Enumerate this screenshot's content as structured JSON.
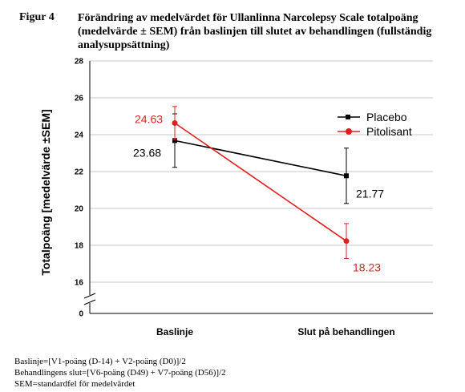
{
  "figure": {
    "label": "Figur 4",
    "title_lines": [
      "Förändring av medelvärdet för Ullanlinna Narcolepsy Scale totalpoäng",
      "(medelvärde ± SEM) från baslinjen till slutet av behandlingen (fullständig",
      "analysuppsättning)"
    ]
  },
  "chart_data": {
    "type": "line",
    "ylabel": "Totalpoäng [medelvärde ±SEM]",
    "xlabel": "",
    "categories": [
      "Baslinje",
      "Slut på behandlingen"
    ],
    "y_ticks": [
      "0",
      "16",
      "18",
      "20",
      "22",
      "24",
      "26",
      "28"
    ],
    "y_axis_break": true,
    "ylim": [
      16,
      28
    ],
    "grid": true,
    "legend_position": "right",
    "series": [
      {
        "name": "Placebo",
        "color": "#000000",
        "marker": "square",
        "values": [
          23.68,
          21.77
        ],
        "sem": [
          1.45,
          1.5
        ],
        "labels": [
          "23.68",
          "21.77"
        ]
      },
      {
        "name": "Pitolisant",
        "color": "#e02020",
        "marker": "circle",
        "values": [
          24.63,
          18.23
        ],
        "sem": [
          0.9,
          0.95
        ],
        "labels": [
          "24.63",
          "18.23"
        ]
      }
    ]
  },
  "footnotes": [
    "Baslinje=[V1-poäng (D-14) + V2-poäng (D0)]/2",
    "Behandlingens slut=[V6-poäng (D49) + V7-poäng (D56)]/2",
    "SEM=standardfel för medelvärdet"
  ]
}
